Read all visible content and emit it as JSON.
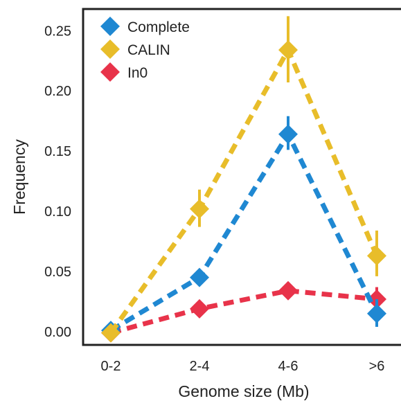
{
  "chart_data": {
    "type": "line",
    "title": "",
    "xlabel": "Genome size (Mb)",
    "ylabel": "Frequency",
    "categories": [
      "0-2",
      "2-4",
      "4-6",
      ">6"
    ],
    "ylim": [
      -0.011,
      0.268
    ],
    "yticks": [
      0.0,
      0.05,
      0.1,
      0.15,
      0.2,
      0.25
    ],
    "ytick_labels": [
      "0.00",
      "0.05",
      "0.10",
      "0.15",
      "0.20",
      "0.25"
    ],
    "grid": false,
    "legend_position": "top-left",
    "series": [
      {
        "name": "Complete",
        "color": "#1f88d2",
        "values": [
          0.001,
          0.045,
          0.164,
          0.015
        ],
        "err_low": [
          0.0,
          0.041,
          0.151,
          0.004
        ],
        "err_high": [
          0.002,
          0.049,
          0.179,
          0.027
        ]
      },
      {
        "name": "CALIN",
        "color": "#e8bd2a",
        "values": [
          -0.001,
          0.102,
          0.234,
          0.063
        ],
        "err_low": [
          -0.002,
          0.087,
          0.207,
          0.046
        ],
        "err_high": [
          0.0,
          0.118,
          0.262,
          0.084
        ]
      },
      {
        "name": "In0",
        "color": "#e8334a",
        "values": [
          -0.001,
          0.019,
          0.034,
          0.027
        ],
        "err_low": [
          -0.002,
          0.015,
          0.03,
          0.017
        ],
        "err_high": [
          0.0,
          0.024,
          0.038,
          0.037
        ]
      }
    ]
  }
}
